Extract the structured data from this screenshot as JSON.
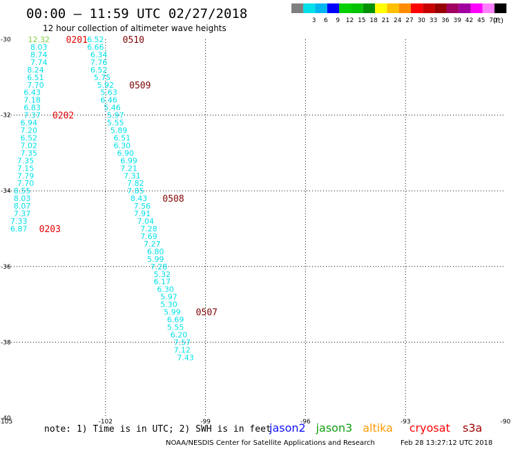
{
  "header": {
    "title": "00:00 – 11:59 UTC 02/27/2018",
    "subtitle": "12 hour collection of altimeter wave heights"
  },
  "legend_scale": {
    "unit_label": "(ft)",
    "bins": [
      {
        "label": "",
        "color": "#7f7f7f"
      },
      {
        "label": "3",
        "color": "#00e0e8"
      },
      {
        "label": "6",
        "color": "#00b4f0"
      },
      {
        "label": "9",
        "color": "#0000ff"
      },
      {
        "label": "12",
        "color": "#00d000"
      },
      {
        "label": "15",
        "color": "#00c200"
      },
      {
        "label": "18",
        "color": "#009000"
      },
      {
        "label": "21",
        "color": "#ffff00"
      },
      {
        "label": "24",
        "color": "#ffc000"
      },
      {
        "label": "27",
        "color": "#ff8c00"
      },
      {
        "label": "30",
        "color": "#ff0000"
      },
      {
        "label": "33",
        "color": "#c80000"
      },
      {
        "label": "36",
        "color": "#960000"
      },
      {
        "label": "39",
        "color": "#a00060"
      },
      {
        "label": "42",
        "color": "#a000a0"
      },
      {
        "label": "45",
        "color": "#ff00ff"
      },
      {
        "label": "70",
        "color": "#ff80ff"
      },
      {
        "label": "",
        "color": "#000000"
      }
    ]
  },
  "footer": {
    "note": "note:  1) Time is in UTC; 2) SWH is in feet",
    "satellites": [
      {
        "name": "jason2",
        "color": "#1010ff"
      },
      {
        "name": "jason3",
        "color": "#10a010"
      },
      {
        "name": "altika",
        "color": "#ff9a00"
      },
      {
        "name": "cryosat",
        "color": "#ff0000"
      },
      {
        "name": "s3a",
        "color": "#a00000"
      }
    ],
    "credit": "NOAA/NESDIS Center for Satellite Applications and Research",
    "timestamp": "Feb 28 13:27:12 UTC 2018"
  },
  "chart_data": {
    "type": "scatter",
    "title": "00:00 – 11:59 UTC 02/27/2018",
    "subtitle": "12 hour collection of altimeter wave heights",
    "xlim": [
      -105,
      -90
    ],
    "ylim": [
      -40,
      -30
    ],
    "x_ticks": [
      "-105",
      "-102",
      "-99",
      "-96",
      "-93",
      "-90"
    ],
    "y_ticks": [
      "-30",
      "-32",
      "-34",
      "-36",
      "-38",
      "-40"
    ],
    "grid": "dotted",
    "units": "ft",
    "colors": {
      "low": "#00e0e8",
      "high": "#80d040",
      "time_early": "#e00000",
      "time_late": "#800000"
    },
    "tracks": [
      {
        "points": [
          {
            "x": -104.0,
            "y": -30.0,
            "v": "12.32"
          },
          {
            "x": -104.0,
            "y": -30.2,
            "v": "8.03"
          },
          {
            "x": -104.0,
            "y": -30.4,
            "v": "8.74"
          },
          {
            "x": -104.0,
            "y": -30.6,
            "v": "7.74"
          },
          {
            "x": -104.1,
            "y": -30.8,
            "v": "8.24"
          },
          {
            "x": -104.1,
            "y": -31.0,
            "v": "6.51"
          },
          {
            "x": -104.1,
            "y": -31.2,
            "v": "7.70"
          },
          {
            "x": -104.2,
            "y": -31.4,
            "v": "6.43"
          },
          {
            "x": -104.2,
            "y": -31.6,
            "v": "7.18"
          },
          {
            "x": -104.2,
            "y": -31.8,
            "v": "6.83"
          },
          {
            "x": -104.2,
            "y": -32.0,
            "v": "7.37"
          },
          {
            "x": -104.3,
            "y": -32.2,
            "v": "6.94"
          },
          {
            "x": -104.3,
            "y": -32.4,
            "v": "7.20"
          },
          {
            "x": -104.3,
            "y": -32.6,
            "v": "6.52"
          },
          {
            "x": -104.3,
            "y": -32.8,
            "v": "7.02"
          },
          {
            "x": -104.3,
            "y": -33.0,
            "v": "7.35"
          },
          {
            "x": -104.4,
            "y": -33.2,
            "v": "7.35"
          },
          {
            "x": -104.4,
            "y": -33.4,
            "v": "7.15"
          },
          {
            "x": -104.4,
            "y": -33.6,
            "v": "7.79"
          },
          {
            "x": -104.4,
            "y": -33.8,
            "v": "7.70"
          },
          {
            "x": -104.5,
            "y": -34.0,
            "v": "8.55"
          },
          {
            "x": -104.5,
            "y": -34.2,
            "v": "8.03"
          },
          {
            "x": -104.5,
            "y": -34.4,
            "v": "8.07"
          },
          {
            "x": -104.5,
            "y": -34.6,
            "v": "7.37"
          },
          {
            "x": -104.6,
            "y": -34.8,
            "v": "7.33"
          },
          {
            "x": -104.6,
            "y": -35.0,
            "v": "6.87"
          }
        ],
        "time_labels": [
          {
            "text": "0201",
            "lat": -30.0,
            "offset": 55
          },
          {
            "text": "0202",
            "lat": -32.0,
            "offset": 45
          },
          {
            "text": "0203",
            "lat": -35.0,
            "offset": 45
          }
        ]
      },
      {
        "points": [
          {
            "x": -102.3,
            "y": -30.0,
            "v": "6.52"
          },
          {
            "x": -102.3,
            "y": -30.2,
            "v": "6.66"
          },
          {
            "x": -102.2,
            "y": -30.4,
            "v": "6.34"
          },
          {
            "x": -102.2,
            "y": -30.6,
            "v": "7.76"
          },
          {
            "x": -102.2,
            "y": -30.8,
            "v": "6.52"
          },
          {
            "x": -102.1,
            "y": -31.0,
            "v": "5.75"
          },
          {
            "x": -102.0,
            "y": -31.2,
            "v": "5.92"
          },
          {
            "x": -101.9,
            "y": -31.4,
            "v": "5.63"
          },
          {
            "x": -101.9,
            "y": -31.6,
            "v": "6.46"
          },
          {
            "x": -101.8,
            "y": -31.8,
            "v": "5.46"
          },
          {
            "x": -101.7,
            "y": -32.0,
            "v": "5.97"
          },
          {
            "x": -101.7,
            "y": -32.2,
            "v": "5.55"
          },
          {
            "x": -101.6,
            "y": -32.4,
            "v": "5.89"
          },
          {
            "x": -101.5,
            "y": -32.6,
            "v": "6.51"
          },
          {
            "x": -101.5,
            "y": -32.8,
            "v": "6.30"
          },
          {
            "x": -101.4,
            "y": -33.0,
            "v": "6.90"
          },
          {
            "x": -101.3,
            "y": -33.2,
            "v": "6.99"
          },
          {
            "x": -101.3,
            "y": -33.4,
            "v": "7.21"
          },
          {
            "x": -101.2,
            "y": -33.6,
            "v": "7.31"
          },
          {
            "x": -101.1,
            "y": -33.8,
            "v": "7.82"
          },
          {
            "x": -101.1,
            "y": -34.0,
            "v": "7.85"
          },
          {
            "x": -101.0,
            "y": -34.2,
            "v": "8.43"
          },
          {
            "x": -100.9,
            "y": -34.4,
            "v": "7.56"
          },
          {
            "x": -100.9,
            "y": -34.6,
            "v": "7.91"
          },
          {
            "x": -100.8,
            "y": -34.8,
            "v": "7.04"
          },
          {
            "x": -100.7,
            "y": -35.0,
            "v": "7.28"
          },
          {
            "x": -100.7,
            "y": -35.2,
            "v": "7.69"
          },
          {
            "x": -100.6,
            "y": -35.4,
            "v": "7.27"
          },
          {
            "x": -100.5,
            "y": -35.6,
            "v": "6.80"
          },
          {
            "x": -100.5,
            "y": -35.8,
            "v": "5.99"
          },
          {
            "x": -100.4,
            "y": -36.0,
            "v": "7.28"
          },
          {
            "x": -100.3,
            "y": -36.2,
            "v": "5.32"
          },
          {
            "x": -100.3,
            "y": -36.4,
            "v": "6.17"
          },
          {
            "x": -100.2,
            "y": -36.6,
            "v": "6.30"
          },
          {
            "x": -100.1,
            "y": -36.8,
            "v": "5.97"
          },
          {
            "x": -100.1,
            "y": -37.0,
            "v": "5.30"
          },
          {
            "x": -100.0,
            "y": -37.2,
            "v": "5.99"
          },
          {
            "x": -99.9,
            "y": -37.4,
            "v": "6.69"
          },
          {
            "x": -99.9,
            "y": -37.6,
            "v": "5.55"
          },
          {
            "x": -99.8,
            "y": -37.8,
            "v": "6.20"
          },
          {
            "x": -99.7,
            "y": -38.0,
            "v": "7.57"
          },
          {
            "x": -99.7,
            "y": -38.2,
            "v": "7.12"
          },
          {
            "x": -99.6,
            "y": -38.4,
            "v": "7.43"
          }
        ],
        "time_labels": [
          {
            "text": "0510",
            "lat": -30.0,
            "offset": 55
          },
          {
            "text": "0509",
            "lat": -31.2,
            "offset": 50
          },
          {
            "text": "0508",
            "lat": -34.2,
            "offset": 50
          },
          {
            "text": "0507",
            "lat": -37.2,
            "offset": 50
          }
        ]
      }
    ]
  }
}
